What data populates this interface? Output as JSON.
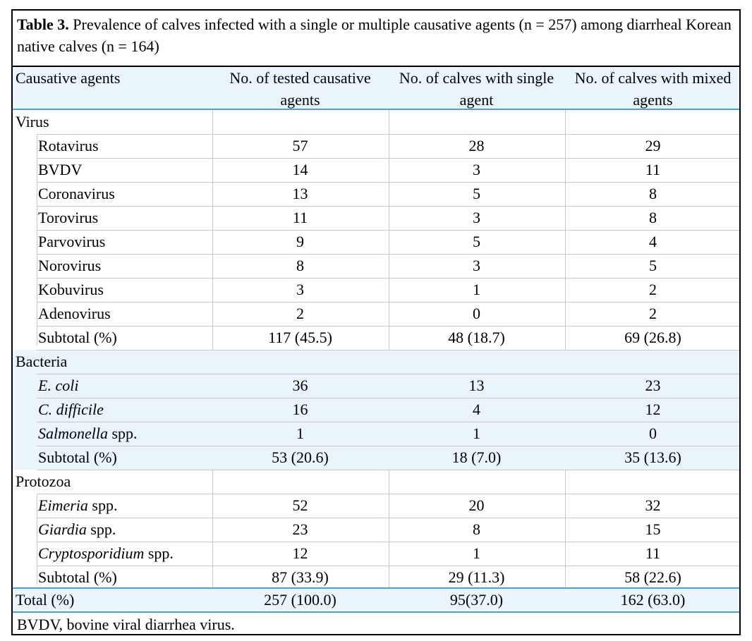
{
  "caption": {
    "label": "Table 3.",
    "text": " Prevalence of calves infected with a single or multiple causative agents (n = 257) among diarrheal Korean native calves (n = 164)"
  },
  "header": {
    "col0": "Causative agents",
    "col1": "No. of tested causative agents",
    "col2": "No. of calves with single agent",
    "col3": "No. of calves with mixed agents"
  },
  "groups": [
    {
      "name": "Virus",
      "rows": [
        {
          "agent": "Rotavirus",
          "tested": "57",
          "single": "28",
          "mixed": "29"
        },
        {
          "agent": "BVDV",
          "tested": "14",
          "single": "3",
          "mixed": "11"
        },
        {
          "agent": "Coronavirus",
          "tested": "13",
          "single": "5",
          "mixed": "8"
        },
        {
          "agent": "Torovirus",
          "tested": "11",
          "single": "3",
          "mixed": "8"
        },
        {
          "agent": "Parvovirus",
          "tested": "9",
          "single": "5",
          "mixed": "4"
        },
        {
          "agent": "Norovirus",
          "tested": "8",
          "single": "3",
          "mixed": "5"
        },
        {
          "agent": "Kobuvirus",
          "tested": "3",
          "single": "1",
          "mixed": "2"
        },
        {
          "agent": "Adenovirus",
          "tested": "2",
          "single": "0",
          "mixed": "2"
        }
      ],
      "subtotal": {
        "label": "Subtotal (%)",
        "tested": "117 (45.5)",
        "single": "48 (18.7)",
        "mixed": "69 (26.8)"
      }
    },
    {
      "name": "Bacteria",
      "rows": [
        {
          "agent_italic": "E. coli",
          "agent_rest": "",
          "tested": "36",
          "single": "13",
          "mixed": "23"
        },
        {
          "agent_italic": "C. difficile",
          "agent_rest": "",
          "tested": "16",
          "single": "4",
          "mixed": "12"
        },
        {
          "agent_italic": "Salmonella",
          "agent_rest": " spp.",
          "tested": "1",
          "single": "1",
          "mixed": "0"
        }
      ],
      "subtotal": {
        "label": "Subtotal (%)",
        "tested": "53 (20.6)",
        "single": "18 (7.0)",
        "mixed": "35 (13.6)"
      }
    },
    {
      "name": "Protozoa",
      "rows": [
        {
          "agent_italic": "Eimeria",
          "agent_rest": " spp.",
          "tested": "52",
          "single": "20",
          "mixed": "32"
        },
        {
          "agent_italic": "Giardia",
          "agent_rest": " spp.",
          "tested": "23",
          "single": "8",
          "mixed": "15"
        },
        {
          "agent_italic": "Cryptosporidium",
          "agent_rest": " spp.",
          "tested": "12",
          "single": "1",
          "mixed": "11"
        }
      ],
      "subtotal": {
        "label": "Subtotal (%)",
        "tested": "87 (33.9)",
        "single": "29 (11.3)",
        "mixed": "58 (22.6)"
      }
    }
  ],
  "total": {
    "label": "Total (%)",
    "tested": "257 (100.0)",
    "single": "95(37.0)",
    "mixed": "162 (63.0)"
  },
  "footnote": "BVDV, bovine viral diarrhea virus."
}
